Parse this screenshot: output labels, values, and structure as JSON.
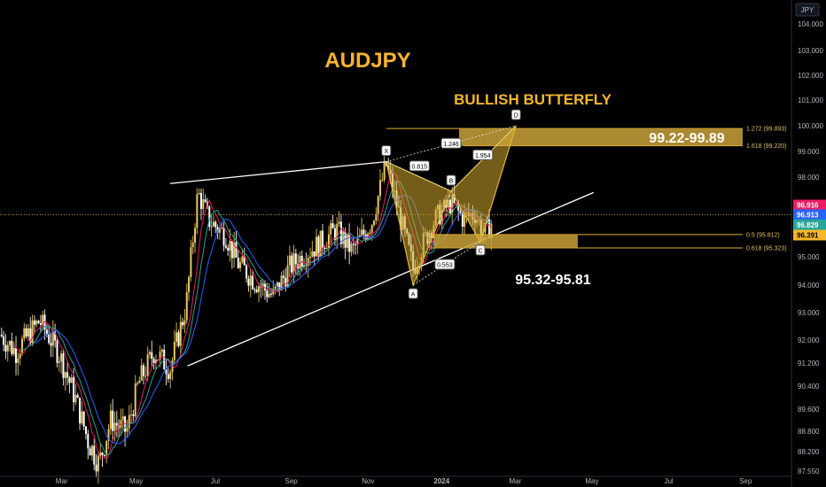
{
  "chart_data": {
    "type": "candlestick",
    "symbol": "AUDJPY",
    "title": "AUDJPY",
    "subtitle": "BULLISH BUTTERFLY",
    "currency_label": "JPY",
    "y_axis": {
      "ylim": [
        87.5,
        104.5
      ],
      "ticks": [
        "104.000",
        "103.000",
        "102.000",
        "101.000",
        "100.000",
        "99.000",
        "98.000",
        "97.000",
        "96.000",
        "95.000",
        "94.000",
        "93.000",
        "92.000",
        "91.200",
        "90.400",
        "89.600",
        "88.800",
        "88.200",
        "87.550"
      ],
      "tick_values": [
        104.0,
        103.0,
        102.0,
        101.0,
        100.0,
        99.0,
        98.0,
        97.0,
        96.0,
        95.0,
        94.0,
        93.0,
        92.0,
        91.2,
        90.4,
        89.6,
        88.8,
        88.2,
        87.55
      ]
    },
    "x_axis": {
      "ticks": [
        "Mar",
        "May",
        "Jul",
        "Sep",
        "Nov",
        "2024",
        "Mar",
        "May",
        "Jul",
        "Sep"
      ],
      "tick_fracs": [
        0.078,
        0.172,
        0.272,
        0.368,
        0.465,
        0.558,
        0.651,
        0.748,
        0.845,
        0.942
      ]
    },
    "price_tags": [
      {
        "value": "96.916",
        "numeric": 96.916,
        "color": "#e91e63",
        "text_color": "#ffffff"
      },
      {
        "value": "96.913",
        "numeric": 96.55,
        "color": "#2962ff",
        "text_color": "#ffffff"
      },
      {
        "value": "96.829",
        "numeric": 96.17,
        "color": "#26a69a",
        "text_color": "#ffffff"
      },
      {
        "value": "96.391",
        "numeric": 95.79,
        "color": "#f5b62a",
        "text_color": "#000000"
      }
    ],
    "current_price": 96.391,
    "harmonic_pattern": {
      "name": "BULLISH BUTTERFLY",
      "points": [
        {
          "label": "X",
          "frac_x": 0.488,
          "price": 98.6
        },
        {
          "label": "A",
          "frac_x": 0.522,
          "price": 94.0
        },
        {
          "label": "B",
          "frac_x": 0.57,
          "price": 97.45
        },
        {
          "label": "C",
          "frac_x": 0.607,
          "price": 95.55
        },
        {
          "label": "D",
          "frac_x": 0.652,
          "price": 100.0
        }
      ],
      "ratios": [
        {
          "label": "0.815",
          "frac_x": 0.53,
          "price": 98.42
        },
        {
          "label": "1.954",
          "frac_x": 0.61,
          "price": 98.85
        },
        {
          "label": "1.246",
          "frac_x": 0.57,
          "price": 99.3
        },
        {
          "label": "0.553",
          "frac_x": 0.562,
          "price": 94.72
        }
      ]
    },
    "fib_levels": [
      {
        "label": "1.272 (99.893)",
        "price": 99.893
      },
      {
        "label": "1.618 (99.220)",
        "price": 99.22
      },
      {
        "label": "0.5 (95.812)",
        "price": 95.812
      },
      {
        "label": "0.618 (95.323)",
        "price": 95.323
      }
    ],
    "zones": [
      {
        "label": "99.22-99.89",
        "low": 99.22,
        "high": 99.893
      },
      {
        "label": "95.32-95.81",
        "low": 95.323,
        "high": 95.812
      }
    ],
    "trend_lines": [
      {
        "from": {
          "frac_x": 0.215,
          "price": 97.75
        },
        "to": {
          "frac_x": 0.488,
          "price": 98.6
        }
      },
      {
        "from": {
          "frac_x": 0.237,
          "price": 91.1
        },
        "to": {
          "frac_x": 0.75,
          "price": 97.4
        }
      }
    ]
  }
}
